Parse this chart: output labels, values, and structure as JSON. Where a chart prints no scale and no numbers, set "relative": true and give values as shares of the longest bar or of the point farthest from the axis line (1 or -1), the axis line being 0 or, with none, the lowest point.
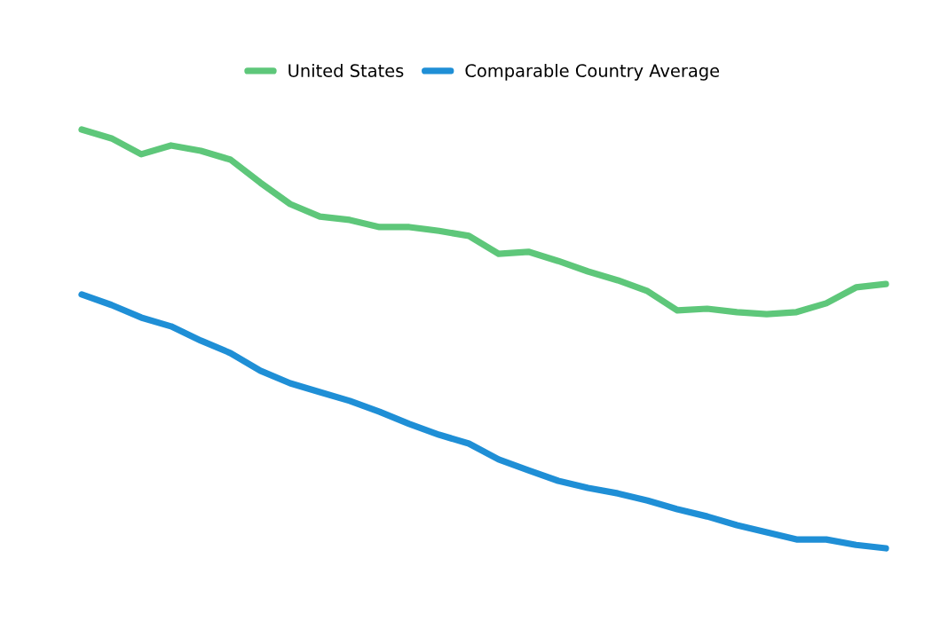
{
  "chart_data": {
    "type": "line",
    "relative": true,
    "legend": "top",
    "grid": false,
    "marker": "none",
    "line_style": "solid",
    "categories": [
      null,
      null,
      null,
      null,
      null,
      null,
      null,
      null,
      null,
      null,
      null,
      null,
      null,
      null,
      null,
      null,
      null,
      null,
      null,
      null,
      null,
      null,
      null,
      null,
      null,
      null,
      null,
      null
    ],
    "series": [
      {
        "name": "United States",
        "color": "#5ec77a",
        "values": [
          1,
          0.979,
          0.941,
          0.962,
          0.949,
          0.928,
          0.873,
          0.822,
          0.792,
          0.784,
          0.767,
          0.767,
          0.758,
          0.746,
          0.703,
          0.708,
          0.686,
          0.661,
          0.64,
          0.614,
          0.568,
          0.572,
          0.564,
          0.559,
          0.564,
          0.585,
          0.623,
          0.631
        ]
      },
      {
        "name": "Comparable Country Average",
        "color": "#1f8fd6",
        "values": [
          0.606,
          0.581,
          0.551,
          0.53,
          0.496,
          0.466,
          0.424,
          0.394,
          0.373,
          0.352,
          0.326,
          0.297,
          0.271,
          0.25,
          0.212,
          0.186,
          0.161,
          0.144,
          0.131,
          0.114,
          0.093,
          0.076,
          0.055,
          0.038,
          0.021,
          0.021,
          0.008,
          0
        ]
      }
    ]
  }
}
